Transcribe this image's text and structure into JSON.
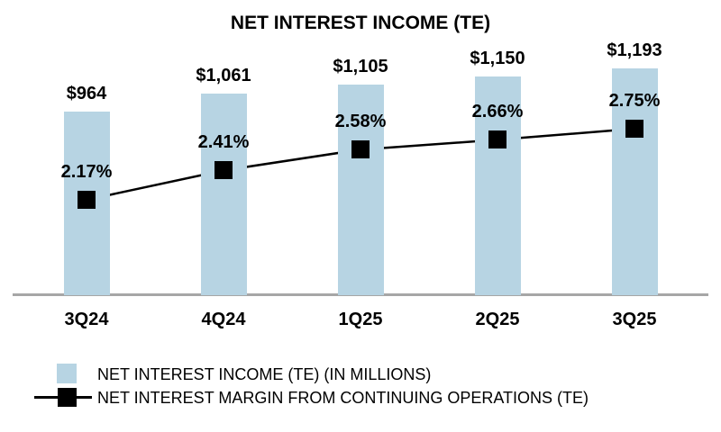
{
  "chart": {
    "title": "NET INTEREST INCOME (TE)"
  },
  "chart_data": {
    "type": "bar",
    "subtype": "bar-line-combo",
    "title": "NET INTEREST INCOME (TE)",
    "categories": [
      "3Q24",
      "4Q24",
      "1Q25",
      "2Q25",
      "3Q25"
    ],
    "series": [
      {
        "name": "NET INTEREST INCOME (TE) (IN MILLIONS)",
        "type": "bar",
        "values": [
          964,
          1061,
          1105,
          1150,
          1193
        ],
        "labels": [
          "$964",
          "$1,061",
          "$1,105",
          "$1,150",
          "$1,193"
        ],
        "color": "#B7D4E3"
      },
      {
        "name": "NET INTEREST MARGIN FROM CONTINUING OPERATIONS (TE)",
        "type": "line",
        "values": [
          2.17,
          2.41,
          2.58,
          2.66,
          2.75
        ],
        "labels": [
          "2.17%",
          "2.41%",
          "2.58%",
          "2.66%",
          "2.75%"
        ],
        "color": "#000000",
        "marker": "black-square"
      }
    ],
    "grid": false,
    "y_axis_visible": false,
    "x_baseline_color": "#A6A6A6",
    "legend_position": "bottom-left",
    "data_labels_visible": true
  },
  "legend": {
    "items": [
      {
        "label": "NET INTEREST INCOME (TE) (IN MILLIONS)",
        "swatch": "bar-square",
        "color": "#B7D4E3"
      },
      {
        "label": "NET INTEREST MARGIN FROM CONTINUING OPERATIONS (TE)",
        "swatch": "line-with-square-marker",
        "color": "#000000"
      }
    ]
  }
}
